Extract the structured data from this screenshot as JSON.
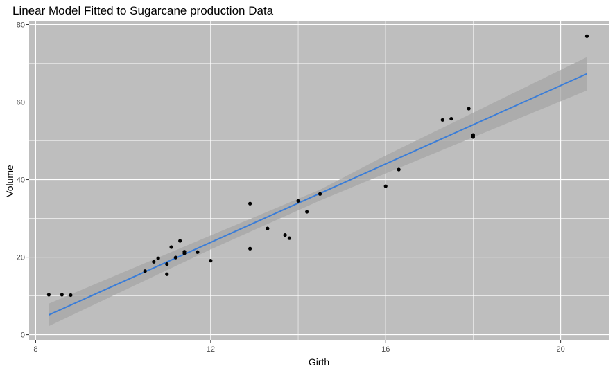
{
  "chart_data": {
    "type": "scatter",
    "title": "Linear Model Fitted to Sugarcane production Data",
    "xlabel": "Girth",
    "ylabel": "Volume",
    "xlim": [
      7.85,
      21.1
    ],
    "ylim": [
      -1.5,
      80.8
    ],
    "xticks": [
      8,
      12,
      16,
      20
    ],
    "xtick_minor": [
      10,
      14,
      18
    ],
    "yticks": [
      0,
      20,
      40,
      60,
      80
    ],
    "ytick_minor": [
      10,
      30,
      50,
      70
    ],
    "grid": true,
    "legend": "none",
    "points": [
      {
        "x": 8.3,
        "y": 10.3
      },
      {
        "x": 8.6,
        "y": 10.3
      },
      {
        "x": 8.8,
        "y": 10.2
      },
      {
        "x": 10.5,
        "y": 16.4
      },
      {
        "x": 10.7,
        "y": 18.8
      },
      {
        "x": 10.8,
        "y": 19.7
      },
      {
        "x": 11.0,
        "y": 15.6
      },
      {
        "x": 11.0,
        "y": 18.2
      },
      {
        "x": 11.1,
        "y": 22.6
      },
      {
        "x": 11.2,
        "y": 19.9
      },
      {
        "x": 11.3,
        "y": 24.2
      },
      {
        "x": 11.4,
        "y": 21.0
      },
      {
        "x": 11.4,
        "y": 21.4
      },
      {
        "x": 11.7,
        "y": 21.3
      },
      {
        "x": 12.0,
        "y": 19.1
      },
      {
        "x": 12.9,
        "y": 22.2
      },
      {
        "x": 12.9,
        "y": 33.8
      },
      {
        "x": 13.3,
        "y": 27.4
      },
      {
        "x": 13.7,
        "y": 25.7
      },
      {
        "x": 13.8,
        "y": 24.9
      },
      {
        "x": 14.0,
        "y": 34.5
      },
      {
        "x": 14.2,
        "y": 31.7
      },
      {
        "x": 14.5,
        "y": 36.3
      },
      {
        "x": 16.0,
        "y": 38.3
      },
      {
        "x": 16.3,
        "y": 42.6
      },
      {
        "x": 17.3,
        "y": 55.4
      },
      {
        "x": 17.5,
        "y": 55.7
      },
      {
        "x": 17.9,
        "y": 58.3
      },
      {
        "x": 18.0,
        "y": 51.5
      },
      {
        "x": 18.0,
        "y": 51.0
      },
      {
        "x": 20.6,
        "y": 77.0
      }
    ],
    "fit_line": {
      "x": [
        8.3,
        20.6
      ],
      "y": [
        5.1,
        67.3
      ]
    },
    "confidence_band": {
      "x": [
        8.3,
        12.0,
        14.5,
        16.0,
        20.6
      ],
      "lower": [
        2.2,
        22.0,
        34.6,
        41.6,
        63.0
      ],
      "upper": [
        8.0,
        25.6,
        37.4,
        46.2,
        71.6
      ]
    }
  },
  "colors": {
    "panel_bg": "#bebebe",
    "grid": "#ffffff",
    "fit_line": "#3a7dd8",
    "band": "#a6a6a6",
    "points": "#000000"
  }
}
